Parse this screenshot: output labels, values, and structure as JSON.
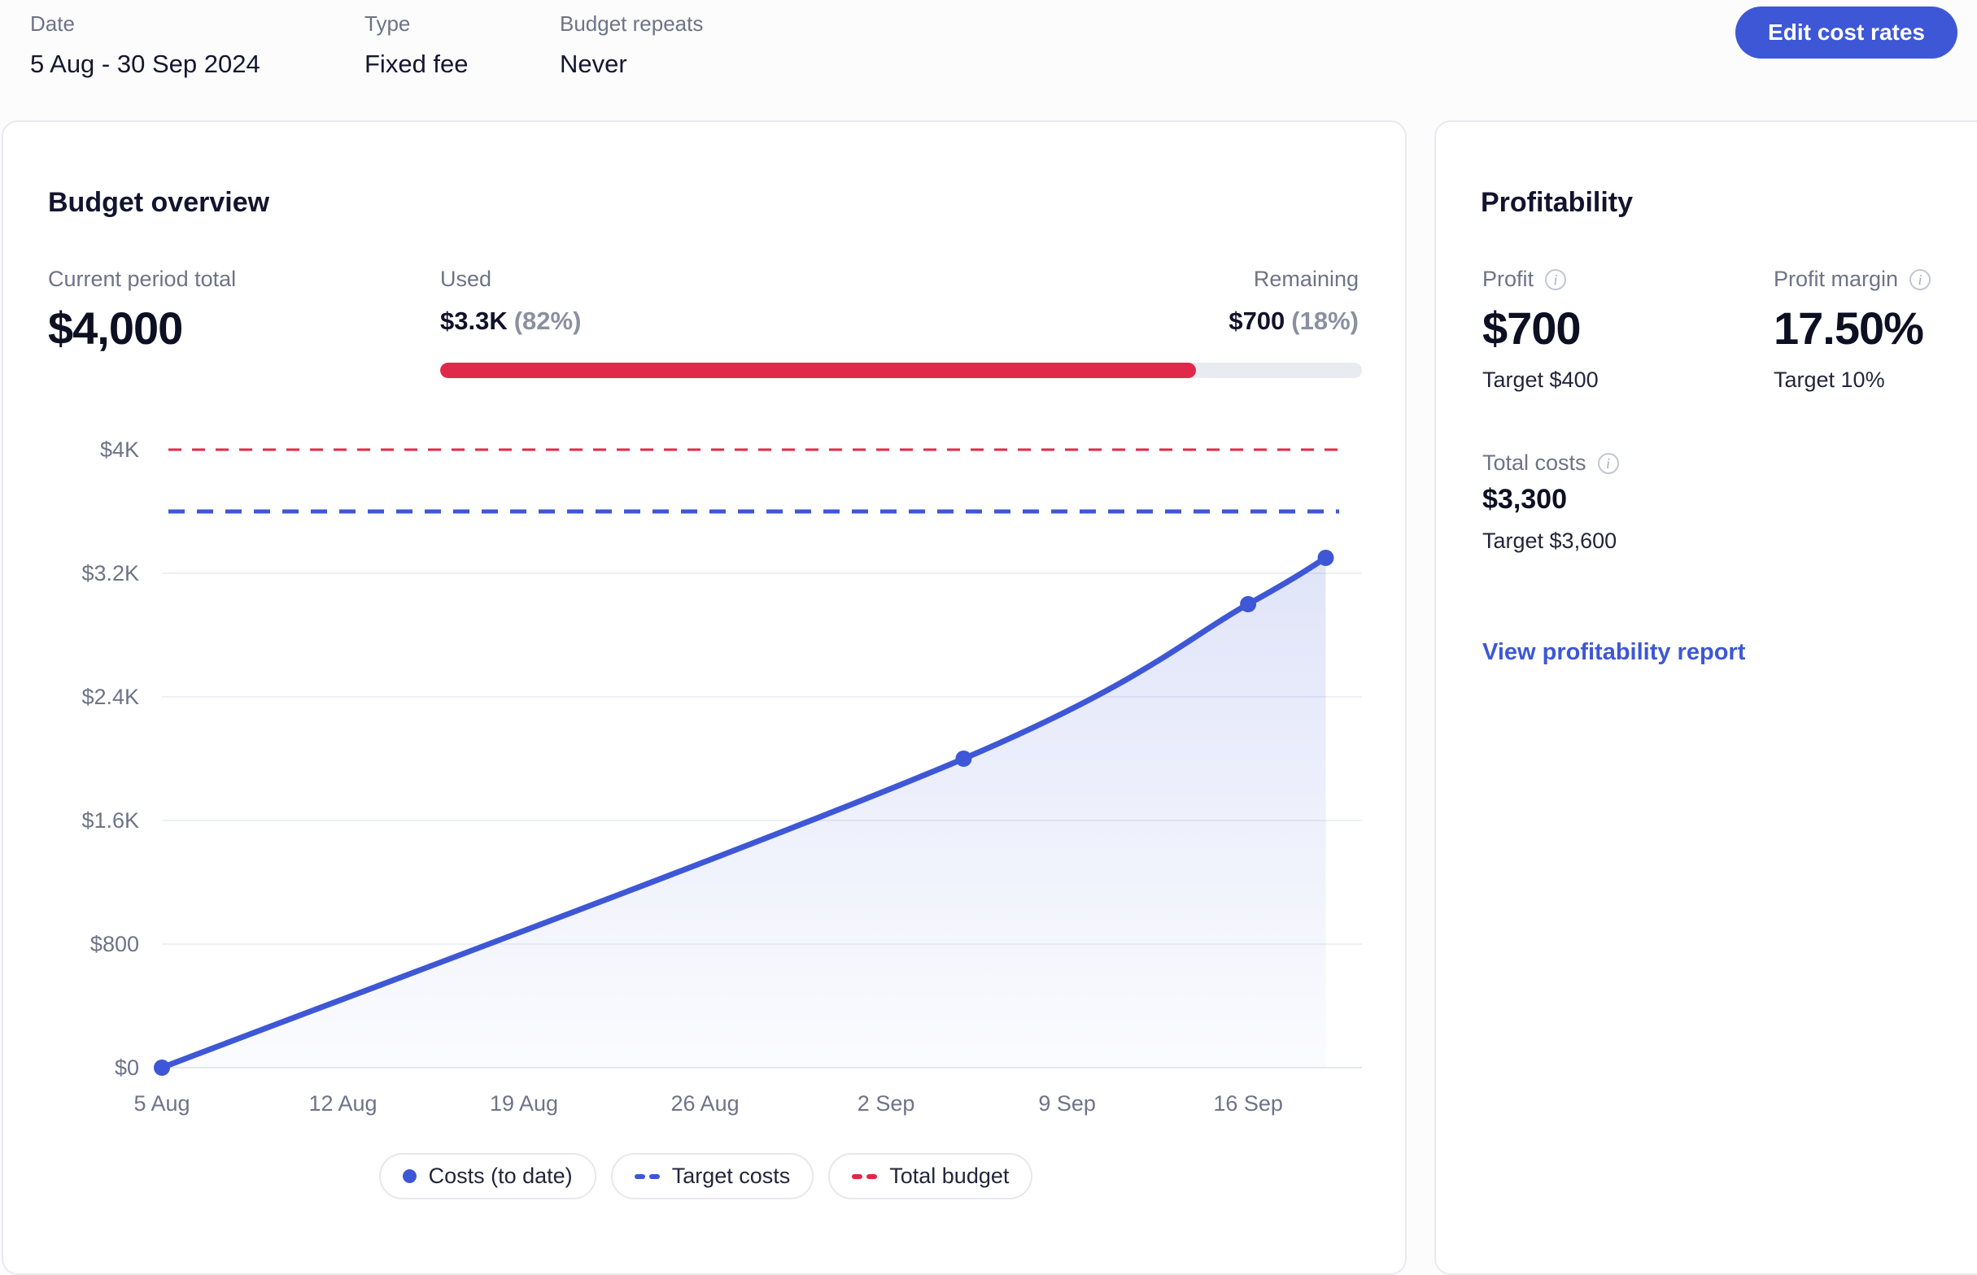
{
  "header": {
    "fields": [
      {
        "label": "Date",
        "value": "5 Aug - 30 Sep 2024"
      },
      {
        "label": "Type",
        "value": "Fixed fee"
      },
      {
        "label": "Budget repeats",
        "value": "Never"
      }
    ],
    "edit_button": "Edit cost rates"
  },
  "budget_overview": {
    "title": "Budget overview",
    "current_period": {
      "label": "Current period total",
      "value": "$4,000"
    },
    "used": {
      "label": "Used",
      "value": "$3.3K",
      "percent": "(82%)",
      "fraction": 0.82
    },
    "remaining": {
      "label": "Remaining",
      "value": "$700",
      "percent": "(18%)"
    },
    "legend": [
      {
        "label": "Costs (to date)",
        "marker": "dot",
        "color": "#3d57d6"
      },
      {
        "label": "Target costs",
        "marker": "dashes",
        "color": "#3d57d6"
      },
      {
        "label": "Total budget",
        "marker": "dashes",
        "color": "#e0294a"
      }
    ]
  },
  "chart_data": {
    "type": "line",
    "title": "Budget overview — costs to date vs targets",
    "xlabel": "",
    "ylabel": "",
    "x_domain": [
      0,
      46.4
    ],
    "y_domain": [
      0,
      4000
    ],
    "grid": true,
    "legend_position": "bottom",
    "x_ticks": [
      {
        "day": 0,
        "label": "5 Aug"
      },
      {
        "day": 7,
        "label": "12 Aug"
      },
      {
        "day": 14,
        "label": "19 Aug"
      },
      {
        "day": 21,
        "label": "26 Aug"
      },
      {
        "day": 28,
        "label": "2 Sep"
      },
      {
        "day": 35,
        "label": "9 Sep"
      },
      {
        "day": 42,
        "label": "16 Sep"
      }
    ],
    "y_ticks": [
      {
        "value": 0,
        "label": "$0",
        "gridline": true
      },
      {
        "value": 800,
        "label": "$800",
        "gridline": true
      },
      {
        "value": 1600,
        "label": "$1.6K",
        "gridline": true
      },
      {
        "value": 2400,
        "label": "$2.4K",
        "gridline": true
      },
      {
        "value": 3200,
        "label": "$3.2K",
        "gridline": true
      },
      {
        "value": 4000,
        "label": "$4K",
        "gridline": false
      }
    ],
    "series": [
      {
        "name": "Costs (to date)",
        "type": "line",
        "color": "#3d57d6",
        "markers": true,
        "area": true,
        "points": [
          {
            "day": 0,
            "value": 0,
            "date": "5 Aug"
          },
          {
            "day": 31,
            "value": 2000,
            "date": "5 Sep"
          },
          {
            "day": 42,
            "value": 3000,
            "date": "16 Sep"
          },
          {
            "day": 45,
            "value": 3300,
            "date": "19 Sep"
          }
        ]
      },
      {
        "name": "Target costs",
        "type": "hline",
        "color": "#3d57d6",
        "value": 3600,
        "dash": "20 15",
        "width": 5
      },
      {
        "name": "Total budget",
        "type": "hline",
        "color": "#e0294a",
        "value": 4000,
        "dash": "16 13",
        "width": 3
      }
    ]
  },
  "profitability": {
    "title": "Profitability",
    "stats": [
      {
        "label": "Profit",
        "value": "$700",
        "target": "Target $400",
        "size": "big"
      },
      {
        "label": "Profit margin",
        "value": "17.50%",
        "target": "Target 10%",
        "size": "big"
      },
      {
        "label": "Total costs",
        "value": "$3,300",
        "target": "Target $3,600",
        "size": "small"
      }
    ],
    "link": "View profitability report"
  },
  "colors": {
    "accent_blue": "#3d57d6",
    "accent_red": "#e0294a",
    "bar_track": "#e9ebf0"
  }
}
